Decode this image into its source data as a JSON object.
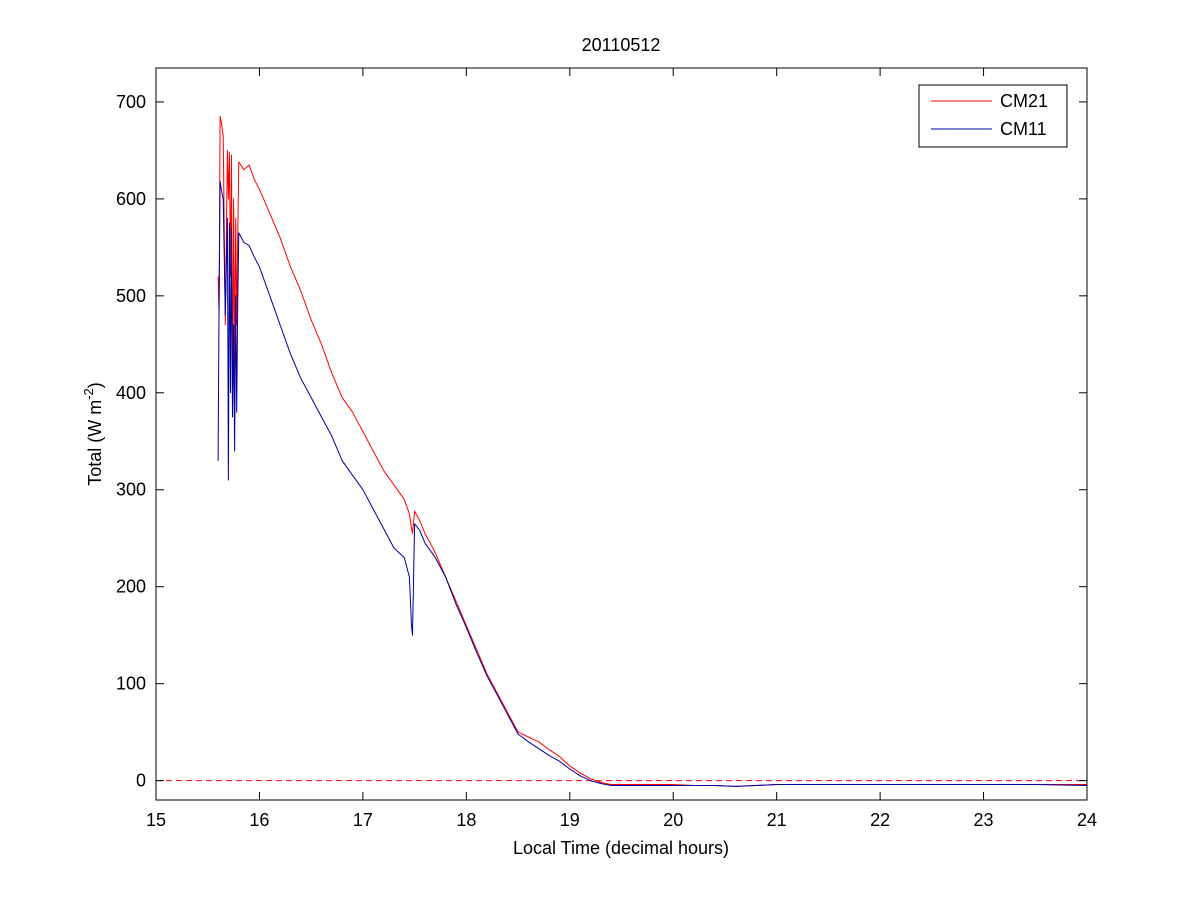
{
  "chart_data": {
    "type": "line",
    "title": "20110512",
    "xlabel": "Local Time (decimal hours)",
    "ylabel": {
      "main": "Total (W m",
      "superscript": "-2",
      "close": ")"
    },
    "xlim": [
      15,
      24
    ],
    "ylim": [
      -20,
      735
    ],
    "xticks": [
      15,
      16,
      17,
      18,
      19,
      20,
      21,
      22,
      23,
      24
    ],
    "yticks": [
      0,
      100,
      200,
      300,
      400,
      500,
      600,
      700
    ],
    "grid": false,
    "legend_position": "top-right",
    "reference_line": {
      "y": 0,
      "style": "dashed",
      "color": "#ff0000"
    },
    "series": [
      {
        "name": "CM21",
        "color": "#ff0000",
        "x": [
          15.6,
          15.61,
          15.62,
          15.63,
          15.65,
          15.67,
          15.69,
          15.7,
          15.71,
          15.72,
          15.73,
          15.74,
          15.75,
          15.76,
          15.77,
          15.78,
          15.79,
          15.8,
          15.85,
          15.9,
          15.95,
          16.0,
          16.1,
          16.2,
          16.3,
          16.4,
          16.5,
          16.6,
          16.7,
          16.8,
          16.9,
          17.0,
          17.1,
          17.2,
          17.3,
          17.4,
          17.45,
          17.47,
          17.48,
          17.5,
          17.55,
          17.6,
          17.7,
          17.8,
          17.9,
          18.0,
          18.1,
          18.2,
          18.3,
          18.4,
          18.5,
          18.6,
          18.7,
          18.8,
          18.9,
          19.0,
          19.1,
          19.2,
          19.3,
          19.4,
          19.5,
          19.6,
          19.8,
          20.0,
          20.2,
          20.4,
          20.6,
          20.8,
          21.0,
          21.5,
          22.0,
          22.5,
          23.0,
          23.5,
          24.0
        ],
        "values": [
          520,
          480,
          685,
          680,
          665,
          470,
          650,
          600,
          648,
          520,
          645,
          380,
          600,
          420,
          580,
          470,
          560,
          638,
          630,
          635,
          620,
          610,
          585,
          560,
          530,
          505,
          475,
          450,
          420,
          395,
          380,
          360,
          340,
          320,
          305,
          290,
          275,
          260,
          255,
          278,
          268,
          255,
          235,
          210,
          185,
          160,
          135,
          110,
          90,
          70,
          50,
          45,
          40,
          32,
          25,
          15,
          8,
          2,
          -2,
          -4,
          -4,
          -4,
          -4,
          -4,
          -5,
          -5,
          -6,
          -5,
          -4,
          -4,
          -4,
          -4,
          -4,
          -4,
          -4
        ]
      },
      {
        "name": "CM11",
        "color": "#0000a0",
        "x": [
          15.6,
          15.61,
          15.62,
          15.63,
          15.65,
          15.67,
          15.69,
          15.7,
          15.71,
          15.72,
          15.73,
          15.74,
          15.75,
          15.76,
          15.77,
          15.78,
          15.79,
          15.8,
          15.85,
          15.9,
          15.95,
          16.0,
          16.1,
          16.2,
          16.3,
          16.4,
          16.5,
          16.6,
          16.7,
          16.8,
          16.9,
          17.0,
          17.1,
          17.2,
          17.3,
          17.4,
          17.45,
          17.47,
          17.48,
          17.5,
          17.55,
          17.6,
          17.7,
          17.8,
          17.9,
          18.0,
          18.1,
          18.2,
          18.3,
          18.4,
          18.5,
          18.6,
          18.7,
          18.8,
          18.9,
          19.0,
          19.1,
          19.2,
          19.3,
          19.4,
          19.5,
          19.6,
          19.8,
          20.0,
          20.2,
          20.4,
          20.6,
          20.8,
          21.0,
          21.5,
          22.0,
          22.5,
          23.0,
          23.5,
          24.0
        ],
        "values": [
          330,
          500,
          618,
          610,
          600,
          480,
          580,
          310,
          575,
          400,
          570,
          375,
          470,
          340,
          500,
          380,
          490,
          565,
          555,
          552,
          540,
          530,
          500,
          470,
          440,
          415,
          395,
          375,
          355,
          330,
          315,
          300,
          280,
          260,
          240,
          230,
          210,
          160,
          150,
          265,
          258,
          245,
          230,
          210,
          182,
          158,
          132,
          108,
          88,
          68,
          48,
          40,
          33,
          26,
          20,
          12,
          5,
          0,
          -3,
          -5,
          -5,
          -5,
          -5,
          -5,
          -5,
          -5,
          -6,
          -5,
          -4,
          -4,
          -4,
          -4,
          -4,
          -4,
          -5
        ]
      }
    ]
  }
}
